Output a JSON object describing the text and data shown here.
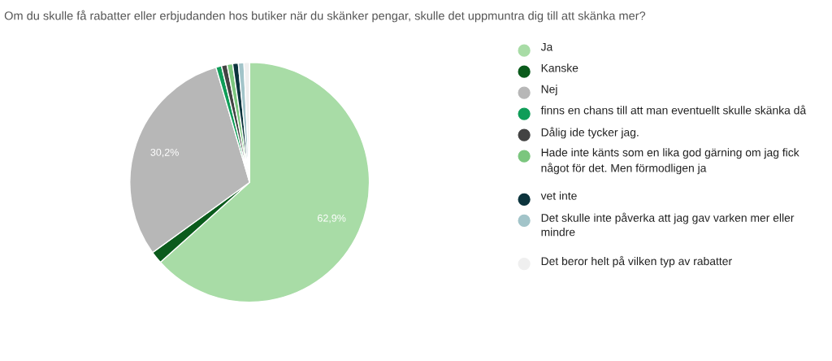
{
  "chart_data": {
    "type": "pie",
    "title": "Om du skulle få rabatter eller erbjudanden hos butiker när du skänker pengar, skulle det uppmuntra dig till att skänka mer?",
    "categories": [
      "Ja",
      "Kanske",
      "Nej",
      "finns en chans till att man eventuellt skulle skänka då",
      "Dålig ide tycker jag.",
      "Hade inte känts som en lika god gärning om jag fick något för det. Men förmodligen ja",
      "vet inte",
      "Det skulle inte påverka att jag gav varken mer eller mindre",
      "Det beror helt på vilken typ av rabatter"
    ],
    "values": [
      62.9,
      1.65,
      30.2,
      0.75,
      0.75,
      0.75,
      0.75,
      0.75,
      0.75
    ],
    "colors": [
      "#a8dca6",
      "#0b5b1c",
      "#b7b7b7",
      "#0f9d58",
      "#434343",
      "#7bc67e",
      "#0c343d",
      "#a2c4c9",
      "#efefef"
    ],
    "value_labels": [
      "62,9%",
      null,
      "30,2%",
      null,
      null,
      null,
      null,
      null,
      null
    ],
    "legend": "right"
  }
}
